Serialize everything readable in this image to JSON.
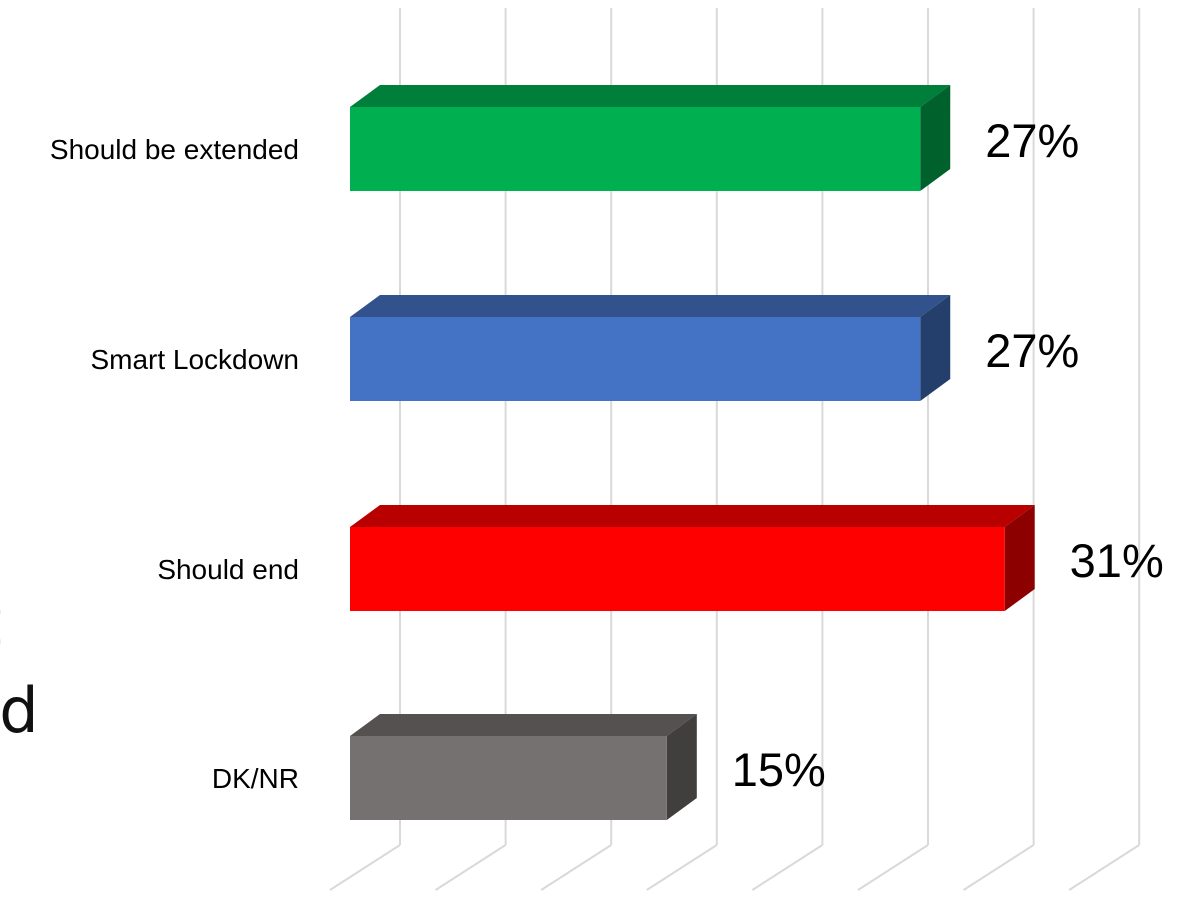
{
  "background_fragments": [
    "it",
    "nd"
  ],
  "chart_data": {
    "type": "bar",
    "orientation": "horizontal",
    "style": "3d",
    "categories": [
      "Should be extended",
      "Smart Lockdown",
      "Should end",
      "DK/NR"
    ],
    "values": [
      27,
      27,
      31,
      15
    ],
    "value_labels": [
      "27%",
      "27%",
      "31%",
      "15%"
    ],
    "colors": [
      "#00b050",
      "#4472c4",
      "#ff0000",
      "#767171"
    ],
    "xlim": [
      0,
      35
    ],
    "gridlines": true,
    "legend": "none",
    "title": "",
    "xlabel": "",
    "ylabel": ""
  }
}
